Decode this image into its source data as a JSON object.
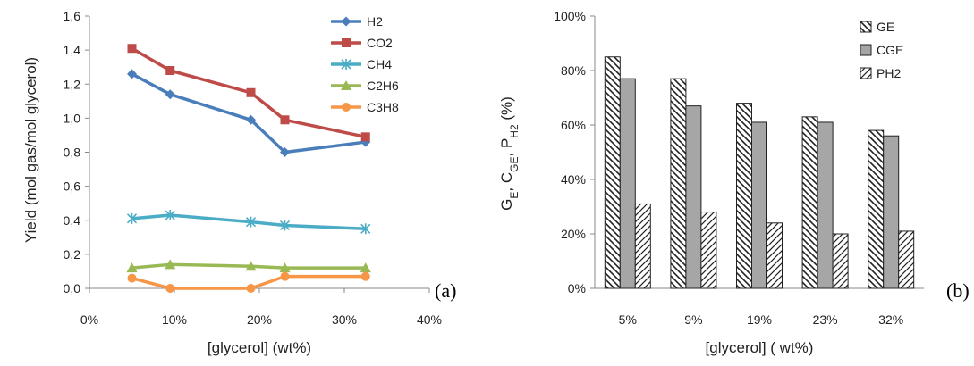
{
  "chart_data": [
    {
      "type": "line",
      "panel_label": "(a)",
      "xlabel": "[glycerol] (wt%)",
      "ylabel": "Yield (mol gas/mol glycerol)",
      "xlim": [
        0,
        40
      ],
      "ylim": [
        0,
        1.6
      ],
      "x_ticks": [
        "0%",
        "10%",
        "20%",
        "30%",
        "40%"
      ],
      "y_ticks": [
        "0,0",
        "0,2",
        "0,4",
        "0,6",
        "0,8",
        "1,0",
        "1,2",
        "1,4",
        "1,6"
      ],
      "x": [
        5,
        9.5,
        19,
        23,
        32.5
      ],
      "series": [
        {
          "name": "H2",
          "color": "#4a7ebb",
          "marker": "diamond",
          "values": [
            1.26,
            1.14,
            0.99,
            0.8,
            0.86
          ]
        },
        {
          "name": "CO2",
          "color": "#be4b48",
          "marker": "square",
          "values": [
            1.41,
            1.28,
            1.15,
            0.99,
            0.89
          ]
        },
        {
          "name": "CH4",
          "color": "#4bacc6",
          "marker": "asterisk",
          "values": [
            0.41,
            0.43,
            0.39,
            0.37,
            0.35
          ]
        },
        {
          "name": "C2H6",
          "color": "#98b954",
          "marker": "triangle",
          "values": [
            0.12,
            0.14,
            0.13,
            0.12,
            0.12
          ]
        },
        {
          "name": "C3H8",
          "color": "#f79646",
          "marker": "circle",
          "values": [
            0.06,
            0.0,
            0.0,
            0.07,
            0.07
          ]
        }
      ],
      "grid": false,
      "legend_position": "top-right"
    },
    {
      "type": "bar",
      "panel_label": "(b)",
      "xlabel": "[glycerol] ( wt%)",
      "ylabel_parts": {
        "g": "G",
        "g_sub": "E",
        "c": ", C",
        "c_sub": "GE",
        "p": ", P",
        "p_sub": "H2",
        "unit": " (%)"
      },
      "categories": [
        "5%",
        "9%",
        "19%",
        "23%",
        "32%"
      ],
      "ylim": [
        0,
        100
      ],
      "y_ticks": [
        "0%",
        "20%",
        "40%",
        "60%",
        "80%",
        "100%"
      ],
      "series": [
        {
          "name": "GE",
          "pattern": "hatch-back",
          "values": [
            85,
            77,
            68,
            63,
            58
          ]
        },
        {
          "name": "CGE",
          "pattern": "gray",
          "values": [
            77,
            67,
            61,
            61,
            56
          ]
        },
        {
          "name": "PH2",
          "pattern": "hatch-fwd",
          "values": [
            31,
            28,
            24,
            20,
            21
          ]
        }
      ],
      "grid": false,
      "legend_position": "top-right"
    }
  ]
}
